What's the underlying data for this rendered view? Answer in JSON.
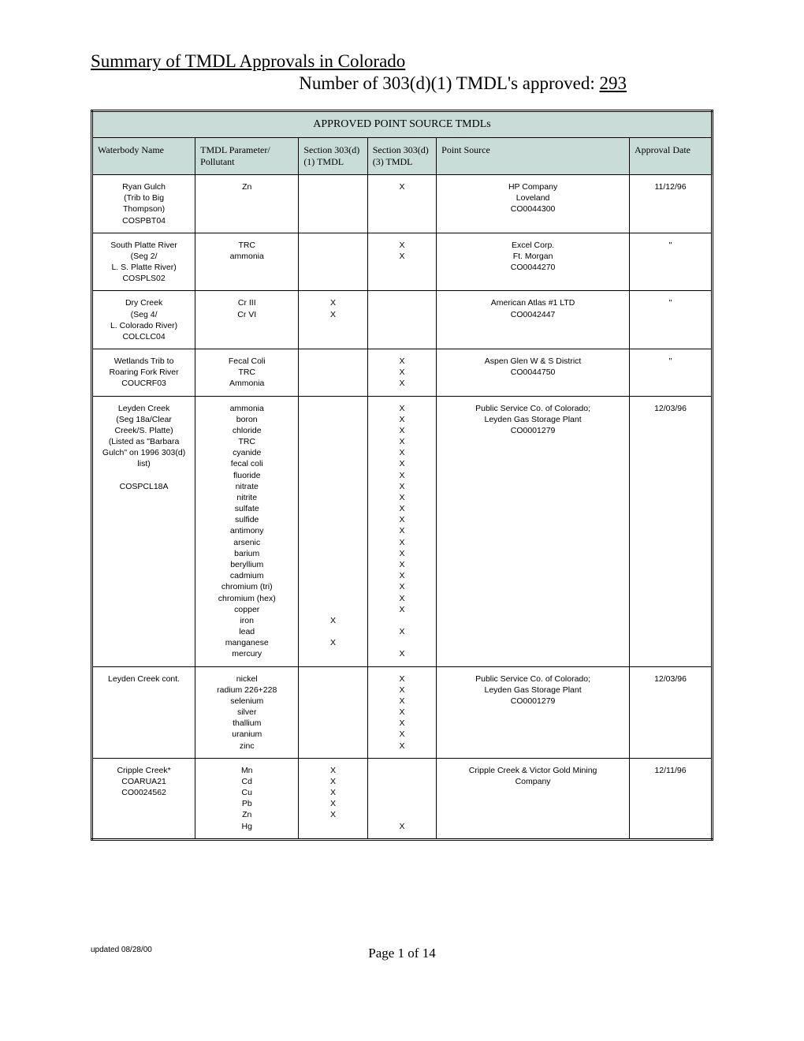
{
  "header": {
    "title": "Summary of TMDL Approvals in Colorado",
    "subtitle_prefix": "Number of 303(d)(1) TMDL's approved: ",
    "count": "293"
  },
  "table": {
    "title": "APPROVED POINT SOURCE TMDLs",
    "columns": {
      "waterbody": "Waterbody Name",
      "parameter": "TMDL Parameter/ Pollutant",
      "d1": "Section 303(d)(1) TMDL",
      "d3": "Section 303(d)(3) TMDL",
      "pointsource": "Point Source",
      "approval": "Approval Date"
    },
    "rows": [
      {
        "waterbody": [
          "Ryan Gulch",
          "(Trib to Big",
          "Thompson)",
          "COSPBT04"
        ],
        "parameter": [
          "Zn"
        ],
        "d1": [
          ""
        ],
        "d3": [
          "X"
        ],
        "pointsource": [
          "HP Company",
          "Loveland",
          "CO0044300"
        ],
        "approval": "11/12/96"
      },
      {
        "waterbody": [
          "South Platte River",
          "(Seg 2/",
          "L. S. Platte River)",
          "COSPLS02"
        ],
        "parameter": [
          "TRC",
          "ammonia"
        ],
        "d1": [
          "",
          ""
        ],
        "d3": [
          "X",
          "X"
        ],
        "pointsource": [
          "Excel Corp.",
          "Ft. Morgan",
          "CO0044270"
        ],
        "approval": "\""
      },
      {
        "waterbody": [
          "Dry Creek",
          "(Seg 4/",
          "L. Colorado River)",
          "COLCLC04"
        ],
        "parameter": [
          "Cr III",
          "Cr VI"
        ],
        "d1": [
          "X",
          "X"
        ],
        "d3": [
          "",
          ""
        ],
        "pointsource": [
          "American Atlas #1 LTD",
          "CO0042447"
        ],
        "approval": "\""
      },
      {
        "waterbody": [
          "Wetlands Trib to",
          "Roaring Fork River",
          "COUCRF03"
        ],
        "parameter": [
          "Fecal Coli",
          "TRC",
          "Ammonia"
        ],
        "d1": [
          "",
          "",
          ""
        ],
        "d3": [
          "X",
          "X",
          "X"
        ],
        "pointsource": [
          "Aspen Glen W & S District",
          "CO0044750"
        ],
        "approval": "\""
      },
      {
        "waterbody": [
          "Leyden Creek",
          "(Seg 18a/Clear",
          "Creek/S. Platte)",
          "(Listed as \"Barbara",
          "Gulch\" on 1996 303(d)",
          "list)",
          "",
          "COSPCL18A"
        ],
        "parameter": [
          "ammonia",
          "boron",
          "chloride",
          "TRC",
          "cyanide",
          "fecal coli",
          "fluoride",
          "nitrate",
          "nitrite",
          "sulfate",
          "sulfide",
          "antimony",
          "arsenic",
          "barium",
          "beryllium",
          "cadmium",
          "chromium (tri)",
          "chromium (hex)",
          "copper",
          "iron",
          "lead",
          "manganese",
          "mercury"
        ],
        "d1": [
          "",
          "",
          "",
          "",
          "",
          "",
          "",
          "",
          "",
          "",
          "",
          "",
          "",
          "",
          "",
          "",
          "",
          "",
          "",
          "X",
          "",
          "X",
          ""
        ],
        "d3": [
          "X",
          "X",
          "X",
          "X",
          "X",
          "X",
          "X",
          "X",
          "X",
          "X",
          "X",
          "X",
          "X",
          "X",
          "X",
          "X",
          "X",
          "X",
          "X",
          "",
          "X",
          "",
          "X"
        ],
        "pointsource": [
          "Public Service Co. of Colorado;",
          "Leyden Gas Storage Plant",
          "CO0001279"
        ],
        "approval": "12/03/96"
      },
      {
        "waterbody": [
          "Leyden Creek cont."
        ],
        "parameter": [
          "nickel",
          "radium 226+228",
          "selenium",
          "silver",
          "thallium",
          "uranium",
          "zinc"
        ],
        "d1": [
          "",
          "",
          "",
          "",
          "",
          "",
          ""
        ],
        "d3": [
          "X",
          "X",
          "X",
          "X",
          "X",
          "X",
          "X"
        ],
        "pointsource": [
          "Public Service Co. of Colorado;",
          "Leyden Gas Storage Plant",
          "CO0001279"
        ],
        "approval": "12/03/96"
      },
      {
        "waterbody": [
          "Cripple Creek*",
          "COARUA21",
          "CO0024562"
        ],
        "parameter": [
          "Mn",
          "Cd",
          "Cu",
          "Pb",
          "Zn",
          "Hg"
        ],
        "d1": [
          "X",
          "X",
          "X",
          "X",
          "X",
          ""
        ],
        "d3": [
          "",
          "",
          "",
          "",
          "",
          "X"
        ],
        "pointsource": [
          "Cripple Creek & Victor Gold Mining",
          "Company"
        ],
        "approval": "12/11/96"
      }
    ]
  },
  "footer": {
    "updated": "updated 08/28/00",
    "page": "Page 1 of  14"
  },
  "styling": {
    "header_bg": "#c9dcd7",
    "border_color": "#000000",
    "body_font": "Arial",
    "title_font": "Times New Roman"
  }
}
